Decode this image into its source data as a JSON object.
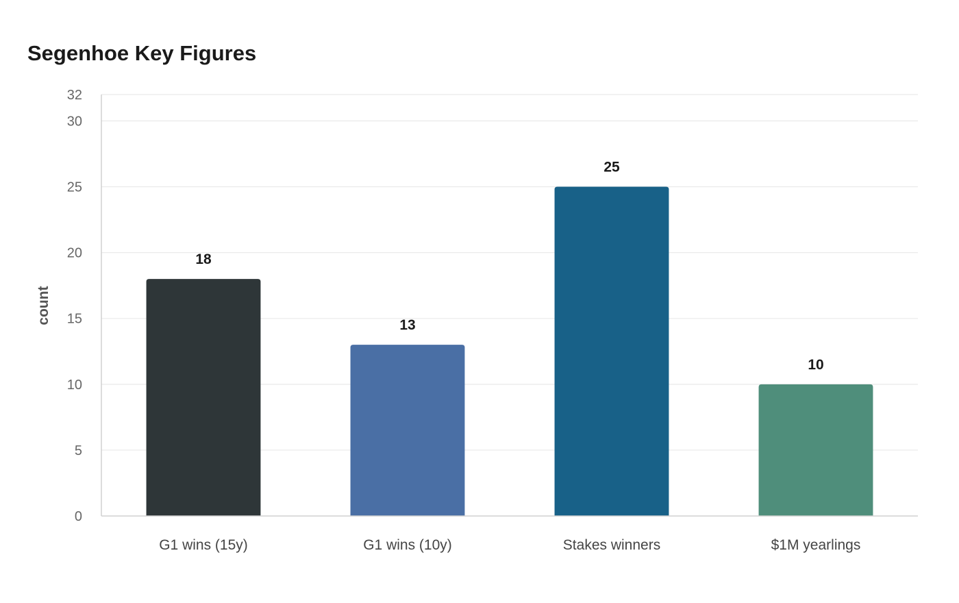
{
  "chart_data": {
    "type": "bar",
    "title": "Segenhoe Key Figures",
    "xlabel": "",
    "ylabel": "count",
    "categories": [
      "G1 wins (15y)",
      "G1 wins (10y)",
      "Stakes winners",
      "$1M yearlings"
    ],
    "values": [
      18,
      13,
      25,
      10
    ],
    "colors": [
      "#2e3638",
      "#4a6fa5",
      "#186188",
      "#4f8e7b"
    ],
    "ylim": [
      0,
      32
    ],
    "yticks": [
      0,
      5,
      10,
      15,
      20,
      25,
      30,
      32
    ],
    "grid": true,
    "legend": "none",
    "data_labels": true
  }
}
